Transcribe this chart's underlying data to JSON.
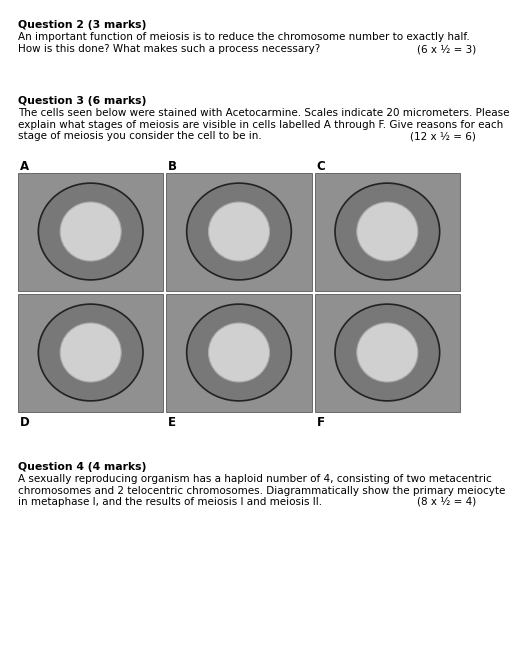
{
  "background_color": "#ffffff",
  "q2_title": "Question 2 (3 marks)",
  "q2_body_line1": "An important function of meiosis is to reduce the chromosome number to exactly half.",
  "q2_body_line2": "How is this done? What makes such a process necessary?",
  "q2_marks": "(6 x ½ = 3)",
  "q3_title": "Question 3 (6 marks)",
  "q3_body_line1": "The cells seen below were stained with Acetocarmine. Scales indicate 20 micrometers. Please",
  "q3_body_line2": "explain what stages of meiosis are visible in cells labelled A through F. Give reasons for each",
  "q3_body_line3": "stage of meiosis you consider the cell to be in.",
  "q3_marks": "(12 x ½ = 6)",
  "cell_labels_top": [
    "A",
    "B",
    "C"
  ],
  "cell_labels_bottom": [
    "D",
    "E",
    "F"
  ],
  "q4_title": "Question 4 (4 marks)",
  "q4_body_line1": "A sexually reproducing organism has a haploid number of 4, consisting of two metacentric",
  "q4_body_line2": "chromosomes and 2 telocentric chromosomes. Diagrammatically show the primary meiocyte",
  "q4_body_line3": "in metaphase I, and the results of meiosis I and meiosis II.",
  "q4_marks": "(8 x ½ = 4)",
  "title_fontsize": 7.8,
  "body_fontsize": 7.5,
  "marks_fontsize": 7.5,
  "label_fontsize": 8.5,
  "img_bg": "#909090",
  "img_edge": "#444444",
  "cell_outer": "#606060",
  "cell_inner": "#c8c8c8"
}
